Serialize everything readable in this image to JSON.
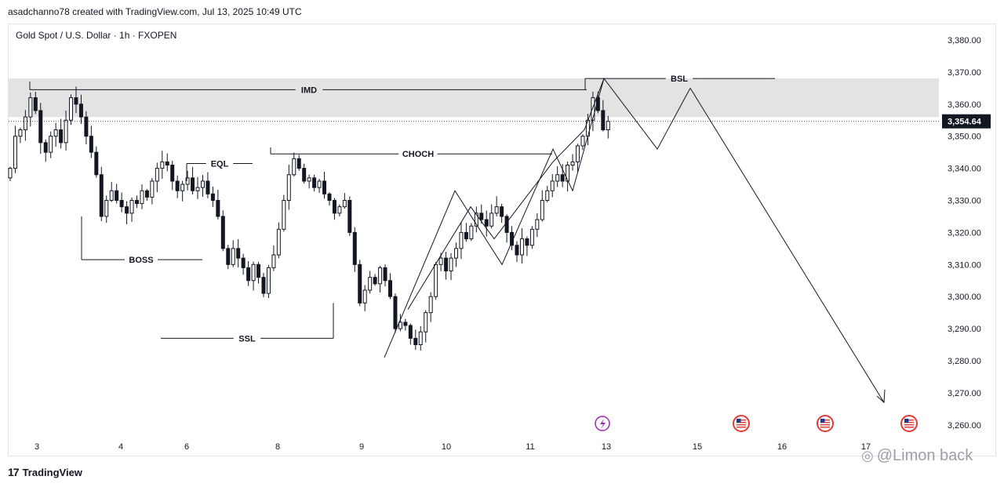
{
  "header": {
    "credit": "asadchanno78 created with TradingView.com, Jul 13, 2025 10:49 UTC"
  },
  "symbol_line": "Gold Spot / U.S. Dollar · 1h · FXOPEN",
  "branding": {
    "logo_text": "TradingView",
    "logo_mark": "17"
  },
  "watermark": {
    "text": "@Limon back"
  },
  "colors": {
    "candle": "#131722",
    "zone": "#e3e3e3",
    "line": "#131722",
    "price_tag": "#131722",
    "event_icon": "#9c27b0",
    "flag_icon": "#e53935"
  },
  "chart_data": {
    "type": "candlestick",
    "symbol": "Gold Spot / U.S. Dollar",
    "interval": "1h",
    "ylim": [
      3255,
      3385
    ],
    "y_ticks": [
      "3,380.00",
      "3,370.00",
      "3,360.00",
      "3,350.00",
      "3,340.00",
      "3,330.00",
      "3,320.00",
      "3,310.00",
      "3,300.00",
      "3,290.00",
      "3,280.00",
      "3,270.00",
      "3,260.00"
    ],
    "x_ticks": [
      "3",
      "4",
      "6",
      "8",
      "9",
      "10",
      "11",
      "13",
      "15",
      "16",
      "17"
    ],
    "last_price": "3,354.64",
    "supply_zone": [
      3356,
      3368
    ],
    "annotations": [
      {
        "label": "IMD",
        "price": 3364.5
      },
      {
        "label": "BSL",
        "price": 3368
      },
      {
        "label": "CHOCH",
        "price": 3344.5
      },
      {
        "label": "EQL",
        "price": 3341.5
      },
      {
        "label": "BOSS",
        "price": 3311.5
      },
      {
        "label": "SSL",
        "price": 3287
      }
    ],
    "closes": [
      3340,
      3350,
      3352,
      3356,
      3362,
      3358,
      3348,
      3345,
      3350,
      3352,
      3348,
      3355,
      3362,
      3360,
      3356,
      3350,
      3345,
      3338,
      3325,
      3330,
      3333,
      3330,
      3328,
      3326,
      3330,
      3329,
      3333,
      3331,
      3336,
      3340,
      3342,
      3341,
      3336,
      3333,
      3335,
      3337,
      3333,
      3334,
      3336,
      3332,
      3330,
      3325,
      3315,
      3310,
      3315,
      3312,
      3309,
      3305,
      3310,
      3306,
      3301,
      3309,
      3313,
      3321,
      3330,
      3338,
      3343,
      3340,
      3336,
      3337,
      3334,
      3336,
      3332,
      3330,
      3326,
      3328,
      3330,
      3320,
      3310,
      3298,
      3302,
      3306,
      3304,
      3309,
      3305,
      3300,
      3290,
      3292,
      3291,
      3287,
      3285,
      3289,
      3295,
      3300,
      3310,
      3312,
      3308,
      3312,
      3315,
      3320,
      3318,
      3322,
      3326,
      3324,
      3322,
      3326,
      3328,
      3325,
      3320,
      3316,
      3313,
      3318,
      3316,
      3321,
      3324,
      3330,
      3333,
      3336,
      3338,
      3336,
      3341,
      3342,
      3347,
      3350,
      3355,
      3362,
      3358,
      3352,
      3354.64
    ],
    "projection_path": [
      [
        111,
        3368
      ],
      [
        116,
        3346
      ],
      [
        121,
        3365
      ],
      [
        144,
        3265
      ]
    ]
  }
}
